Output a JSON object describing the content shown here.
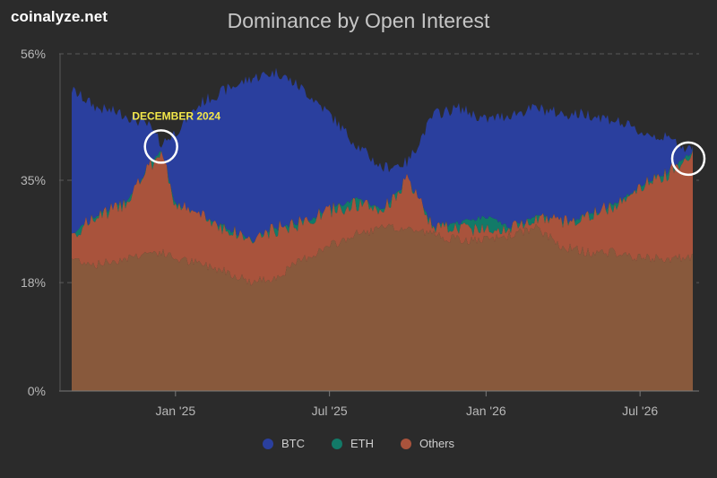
{
  "brand": "coinalyze.net",
  "chart_data": {
    "type": "area",
    "title": "Dominance by Open Interest",
    "stacked": true,
    "x_axis": {
      "start": "2024-09-01",
      "end": "2026-09-01",
      "tick_labels": [
        "Jan '25",
        "Jul '25",
        "Jan '26",
        "Jul '26"
      ],
      "tick_dates": [
        "2025-01-01",
        "2025-07-01",
        "2026-01-01",
        "2026-07-01"
      ]
    },
    "y_axis": {
      "unit": "%",
      "ylim": [
        0,
        56
      ],
      "ticks": [
        0,
        18,
        35,
        56
      ],
      "tick_labels": [
        "0%",
        "18%",
        "35%",
        "56%"
      ]
    },
    "grid": "horizontal dashed",
    "legend_position": "bottom",
    "colors": {
      "BTC": "#2a3f9e",
      "ETH": "#127a68",
      "Others": "#a9533c",
      "Others_lower": "#88593c"
    },
    "series_stack_boundaries": {
      "x": [
        "2024-09-01",
        "2024-10-01",
        "2024-11-01",
        "2024-12-01",
        "2024-12-15",
        "2025-01-01",
        "2025-02-01",
        "2025-03-01",
        "2025-04-01",
        "2025-05-01",
        "2025-06-01",
        "2025-07-01",
        "2025-08-01",
        "2025-09-01",
        "2025-10-01",
        "2025-11-01",
        "2025-12-01",
        "2026-01-01",
        "2026-02-01",
        "2026-03-01",
        "2026-04-01",
        "2026-05-01",
        "2026-06-01",
        "2026-07-01",
        "2026-08-01",
        "2026-09-01"
      ],
      "others_lower": [
        22,
        21,
        22,
        23,
        23,
        22,
        21,
        20,
        18,
        19,
        22,
        24,
        26,
        27,
        27,
        26,
        25,
        25,
        26,
        27,
        24,
        23,
        23,
        22,
        22,
        22
      ],
      "others_top": [
        26,
        29,
        31,
        37,
        40,
        31,
        29,
        27,
        25,
        27,
        28,
        30,
        31,
        30,
        35,
        27,
        27,
        27,
        27,
        29,
        28,
        29,
        31,
        34,
        36,
        40
      ],
      "eth_top": [
        26,
        29,
        31,
        37,
        40,
        31,
        29,
        27,
        25,
        27,
        28,
        30,
        32,
        30,
        35,
        27,
        28,
        29,
        27,
        29,
        28,
        29,
        31,
        34,
        36,
        40
      ],
      "btc_top": [
        50,
        47,
        46,
        44,
        41,
        43,
        48,
        50,
        52,
        53,
        50,
        46,
        41,
        37,
        38,
        46,
        47,
        45,
        46,
        47,
        46,
        46,
        45,
        43,
        42,
        40
      ]
    },
    "series": [
      {
        "name": "BTC"
      },
      {
        "name": "ETH"
      },
      {
        "name": "Others"
      }
    ],
    "annotations": [
      {
        "text": "DECEMBER 2024",
        "x": "2024-12-15",
        "y": 40,
        "marker": "circle"
      },
      {
        "text": "",
        "x": "2026-09-01",
        "y": 38,
        "marker": "circle"
      }
    ]
  }
}
